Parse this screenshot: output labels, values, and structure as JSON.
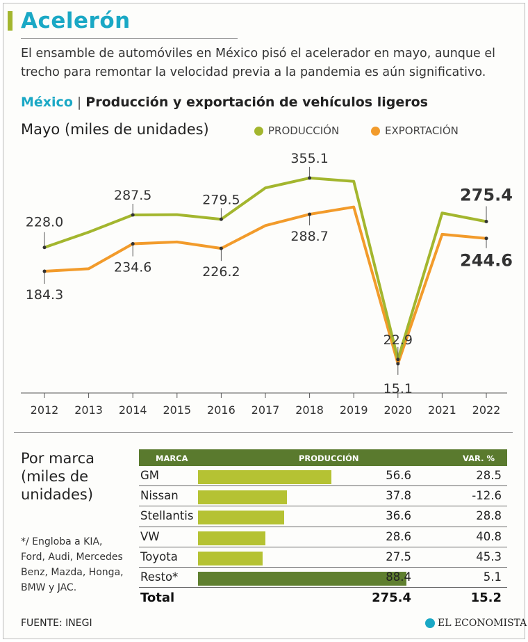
{
  "header": {
    "title": "Acelerón",
    "subtitle": "El ensamble de automóviles en México pisó el acelerador en mayo, aunque el trecho para remontar la velocidad previa a la pandemia es aún significativo.",
    "country": "México",
    "section_title": "Producción y exportación de vehículos ligeros",
    "units": "Mayo (miles de unidades)"
  },
  "legend": {
    "production": "PRODUCCIÓN",
    "export": "EXPORTACIÓN"
  },
  "colors": {
    "production": "#a3b62e",
    "export": "#f29b2b",
    "title": "#1aa8c5",
    "table_header": "#5a7a2e",
    "bar_light": "#b5c233",
    "bar_dark": "#5f7f2f"
  },
  "chart_data": {
    "type": "line",
    "x": [
      "2012",
      "2013",
      "2014",
      "2015",
      "2016",
      "2017",
      "2018",
      "2019",
      "2020",
      "2021",
      "2022"
    ],
    "ylim": [
      15,
      355
    ],
    "series": [
      {
        "name": "PRODUCCIÓN",
        "values": [
          228.0,
          256,
          287.5,
          288,
          279.5,
          337,
          355.1,
          349,
          22.9,
          291,
          275.4
        ]
      },
      {
        "name": "EXPORTACIÓN",
        "values": [
          184.3,
          189,
          234.6,
          238,
          226.2,
          268,
          288.7,
          302,
          15.1,
          252,
          244.6
        ]
      }
    ],
    "labels": [
      {
        "series": 0,
        "index": 0,
        "text": "228.0"
      },
      {
        "series": 0,
        "index": 2,
        "text": "287.5"
      },
      {
        "series": 0,
        "index": 4,
        "text": "279.5"
      },
      {
        "series": 0,
        "index": 6,
        "text": "355.1"
      },
      {
        "series": 0,
        "index": 8,
        "text": "22.9"
      },
      {
        "series": 0,
        "index": 10,
        "text": "275.4"
      },
      {
        "series": 1,
        "index": 0,
        "text": "184.3"
      },
      {
        "series": 1,
        "index": 2,
        "text": "234.6"
      },
      {
        "series": 1,
        "index": 4,
        "text": "226.2"
      },
      {
        "series": 1,
        "index": 6,
        "text": "288.7"
      },
      {
        "series": 1,
        "index": 8,
        "text": "15.1"
      },
      {
        "series": 1,
        "index": 10,
        "text": "244.6"
      }
    ],
    "title": "Producción y exportación de vehículos ligeros",
    "ylabel": "Mayo (miles de unidades)"
  },
  "by_brand": {
    "title": "Por marca (miles de unidades)",
    "columns": [
      "MARCA",
      "PRODUCCIÓN",
      "VAR. %"
    ],
    "rows": [
      {
        "brand": "GM",
        "production": "56.6",
        "var": "28.5",
        "value": 56.6
      },
      {
        "brand": "Nissan",
        "production": "37.8",
        "var": "-12.6",
        "value": 37.8
      },
      {
        "brand": "Stellantis",
        "production": "36.6",
        "var": "28.8",
        "value": 36.6
      },
      {
        "brand": "VW",
        "production": "28.6",
        "var": "40.8",
        "value": 28.6
      },
      {
        "brand": "Toyota",
        "production": "27.5",
        "var": "45.3",
        "value": 27.5
      },
      {
        "brand": "Resto*",
        "production": "88.4",
        "var": "5.1",
        "value": 88.4
      }
    ],
    "total": {
      "label": "Total",
      "production": "275.4",
      "var": "15.2"
    },
    "note": "*/ Engloba a KIA, Ford, Audi, Mercedes Benz, Mazda, Honga, BMW y JAC."
  },
  "footer": {
    "source": "FUENTE: INEGI",
    "logo": "EL ECONOMISTA"
  }
}
